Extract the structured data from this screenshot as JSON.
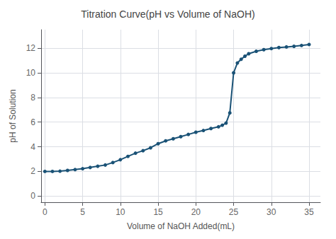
{
  "chart_data": {
    "type": "line",
    "title": "Titration Curve(pH vs Volume of NaOH)",
    "xlabel": "Volume of NaOH Added(mL)",
    "ylabel": "pH of Solution",
    "x": [
      0,
      1,
      2,
      3,
      4,
      5,
      6,
      7,
      8,
      9,
      10,
      11,
      12,
      13,
      14,
      15,
      16,
      17,
      18,
      19,
      20,
      21,
      22,
      23,
      23.5,
      24,
      24.5,
      25,
      25.5,
      26,
      26.5,
      27,
      28,
      29,
      30,
      31,
      32,
      33,
      34,
      35
    ],
    "values": [
      2.0,
      2.0,
      2.02,
      2.08,
      2.15,
      2.22,
      2.32,
      2.42,
      2.52,
      2.72,
      2.95,
      3.22,
      3.48,
      3.68,
      3.92,
      4.25,
      4.48,
      4.65,
      4.82,
      5.0,
      5.18,
      5.32,
      5.48,
      5.62,
      5.75,
      5.92,
      6.75,
      10.0,
      10.8,
      11.1,
      11.35,
      11.55,
      11.75,
      11.88,
      11.97,
      12.05,
      12.1,
      12.15,
      12.22,
      12.3
    ],
    "color": "#1a5276",
    "marker": "circle",
    "xlim": [
      -0.5,
      36.5
    ],
    "ylim": [
      -0.5,
      13.5
    ],
    "xticks": [
      0,
      5,
      10,
      15,
      20,
      25,
      30,
      35
    ],
    "yticks": [
      0,
      2,
      4,
      6,
      8,
      10,
      12
    ],
    "grid": true
  }
}
